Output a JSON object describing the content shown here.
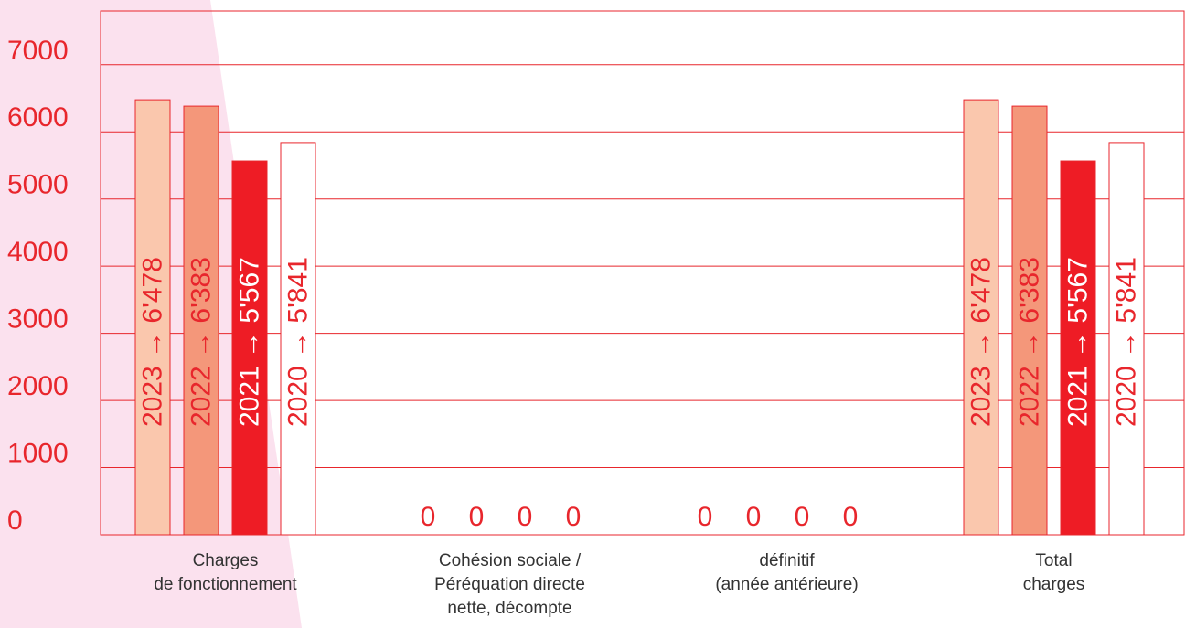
{
  "colors": {
    "accent": "#e8262c",
    "y2023": "#fac7ad",
    "y2022": "#f4977a",
    "y2021": "#ee1c25",
    "y2020": "#ffffff",
    "background_shape": "#fbe1ee",
    "category_text": "#333333"
  },
  "chart_data": {
    "type": "bar",
    "grid": true,
    "ylim": [
      0,
      7800
    ],
    "yticks": [
      "0",
      "1000",
      "2000",
      "3000",
      "4000",
      "5000",
      "6000",
      "7000"
    ],
    "categories": [
      [
        "Charges",
        "de fonctionnement"
      ],
      [
        "Cohésion sociale /",
        "Péréquation directe",
        "nette, décompte"
      ],
      [
        "définitif",
        "(année antérieure)"
      ],
      [
        "Total",
        "charges"
      ]
    ],
    "series": [
      {
        "name": "2023",
        "values": [
          6478,
          0,
          0,
          6478
        ],
        "labels": [
          "2023 → 6'478",
          "0",
          "0",
          "2023 → 6'478"
        ]
      },
      {
        "name": "2022",
        "values": [
          6383,
          0,
          0,
          6383
        ],
        "labels": [
          "2022 → 6'383",
          "0",
          "0",
          "2022 → 6'383"
        ]
      },
      {
        "name": "2021",
        "values": [
          5567,
          0,
          0,
          5567
        ],
        "labels": [
          "2021 → 5'567",
          "0",
          "0",
          "2021 → 5'567"
        ]
      },
      {
        "name": "2020",
        "values": [
          5841,
          0,
          0,
          5841
        ],
        "labels": [
          "2020 → 5'841",
          "0",
          "0",
          "2020 → 5'841"
        ]
      }
    ]
  }
}
